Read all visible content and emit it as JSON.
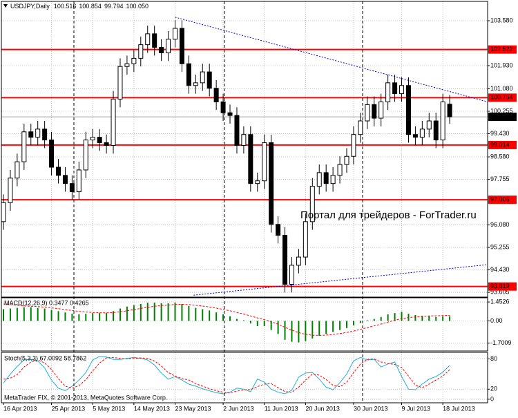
{
  "chart_data": [
    {
      "type": "candlestick",
      "title": "USDJPY,Daily",
      "title_values": [
        "100.516",
        "100.854",
        "99.794",
        "100.050"
      ],
      "watermark": "Портал для трейдеров - ForTrader.ru",
      "categories": [
        "16 Apr 2013",
        null,
        null,
        null,
        null,
        null,
        null,
        "25 Apr 2013",
        null,
        null,
        null,
        null,
        null,
        "5 May 2013",
        null,
        null,
        null,
        null,
        null,
        "14 May 2013",
        null,
        null,
        null,
        null,
        null,
        "23 May 2013",
        null,
        null,
        null,
        null,
        null,
        null,
        "2 Jun 2013",
        null,
        null,
        null,
        null,
        null,
        "11 Jun 2013",
        null,
        null,
        null,
        null,
        null,
        "20 Jun 2013",
        null,
        null,
        null,
        null,
        null,
        null,
        "30 Jun 2013",
        null,
        null,
        null,
        null,
        null,
        null,
        "9 Jul 2013",
        null,
        null,
        null,
        null,
        null,
        "18 Jul 2013",
        null
      ],
      "open": [
        96.2,
        96.9,
        97.8,
        98.4,
        99.5,
        99.3,
        99.6,
        99.2,
        98.2,
        97.9,
        97.6,
        97.3,
        98.1,
        99.2,
        99.3,
        99.1,
        99.0,
        100.7,
        101.9,
        102.0,
        102.2,
        102.7,
        103.1,
        102.6,
        102.4,
        102.9,
        103.3,
        102.0,
        101.2,
        101.3,
        101.7,
        101.1,
        100.6,
        100.2,
        100.1,
        99.0,
        99.4,
        97.6,
        97.7,
        99.1,
        96.1,
        95.7,
        93.9,
        94.6,
        94.9,
        96.2,
        97.5,
        98.0,
        97.6,
        97.9,
        98.3,
        98.6,
        99.4,
        99.9,
        100.5,
        100.0,
        100.6,
        101.3,
        100.9,
        101.2,
        99.4,
        99.3,
        99.6,
        99.9,
        99.2,
        100.516
      ],
      "high": [
        97.2,
        98.1,
        98.7,
        99.8,
        99.8,
        99.9,
        99.9,
        99.5,
        98.5,
        98.2,
        97.9,
        98.4,
        99.5,
        99.6,
        99.6,
        99.4,
        101.0,
        102.2,
        102.3,
        102.5,
        103.0,
        103.4,
        103.4,
        102.9,
        103.2,
        103.6,
        103.6,
        102.3,
        101.6,
        102.0,
        102.0,
        101.4,
        100.9,
        100.5,
        100.4,
        99.7,
        99.7,
        98.0,
        99.4,
        99.4,
        96.4,
        96.0,
        94.9,
        95.2,
        96.5,
        97.8,
        98.3,
        98.3,
        98.2,
        98.6,
        98.9,
        99.7,
        100.2,
        100.8,
        100.8,
        100.9,
        101.6,
        101.6,
        101.5,
        101.5,
        99.7,
        99.9,
        100.2,
        100.2,
        100.9,
        100.854
      ],
      "low": [
        95.9,
        96.6,
        97.5,
        98.1,
        99.0,
        99.0,
        98.9,
        97.9,
        97.6,
        97.3,
        97.0,
        97.0,
        97.8,
        98.9,
        98.8,
        98.7,
        98.7,
        100.4,
        101.6,
        101.7,
        101.9,
        102.4,
        102.3,
        102.1,
        102.1,
        102.6,
        101.7,
        100.9,
        100.9,
        101.0,
        100.8,
        100.3,
        99.9,
        99.8,
        98.7,
        98.7,
        97.3,
        97.3,
        97.4,
        95.8,
        95.4,
        93.6,
        93.6,
        94.3,
        94.6,
        95.9,
        97.2,
        97.3,
        97.3,
        97.6,
        98.0,
        98.3,
        99.1,
        99.6,
        99.7,
        99.7,
        100.3,
        100.6,
        100.6,
        99.1,
        99.0,
        99.0,
        99.3,
        98.9,
        98.9,
        99.794
      ],
      "close": [
        96.9,
        97.8,
        98.4,
        99.5,
        99.3,
        99.6,
        99.2,
        98.2,
        97.9,
        97.6,
        97.3,
        98.1,
        99.2,
        99.3,
        99.1,
        99.0,
        100.7,
        101.9,
        102.0,
        102.2,
        102.7,
        103.1,
        102.6,
        102.4,
        102.9,
        103.3,
        102.0,
        101.2,
        101.3,
        101.7,
        101.1,
        100.6,
        100.2,
        100.1,
        99.0,
        99.4,
        97.6,
        97.7,
        99.1,
        96.1,
        95.7,
        93.9,
        94.6,
        94.9,
        96.2,
        97.5,
        98.0,
        97.6,
        97.9,
        98.3,
        98.6,
        99.4,
        99.9,
        100.5,
        100.0,
        100.6,
        101.3,
        100.9,
        101.2,
        99.4,
        99.3,
        99.6,
        99.9,
        99.2,
        100.6,
        100.05
      ],
      "up_color": "#ffffff",
      "down_color": "#000000",
      "ylim": [
        93.43,
        104.29
      ],
      "yticks": [
        {
          "value": 103.58,
          "label": "103.580"
        },
        {
          "value": 101.93,
          "label": "101.930"
        },
        {
          "value": 101.08,
          "label": "101.080"
        },
        100.255,
        {
          "value": 99.43,
          "label": "99.430"
        },
        {
          "value": 98.58,
          "label": "98.580"
        },
        97.755,
        {
          "value": 96.08,
          "label": "96.080"
        },
        95.255,
        {
          "value": 94.43,
          "label": "94.430"
        },
        93.605
      ],
      "grid": true,
      "levels": [
        102.522,
        100.754,
        99.014,
        97.006,
        93.819
      ],
      "level_color": "#ff0000",
      "last_price": {
        "value": 100.05,
        "label": "100.050"
      },
      "trendlines": [
        {
          "color": "#0000cc",
          "x": [
            25,
            70.4
          ],
          "y": [
            103.71,
            100.61
          ]
        },
        {
          "color": "#0000cc",
          "x": [
            27.7,
            70.4
          ],
          "y": [
            93.5,
            94.62
          ]
        }
      ]
    },
    {
      "type": "macd",
      "title": "MACD(12,26,9) 0.3477 0.4265",
      "ylim": [
        -2.31,
        1.775
      ],
      "yticks": [
        1.4526,
        {
          "value": 0,
          "label": "0.00"
        },
        -1.7009
      ],
      "grid": true,
      "series": [
        {
          "color": "#008000",
          "style": "histogram",
          "values": [
            0.9,
            0.95,
            1.0,
            1.05,
            1.05,
            1.0,
            0.95,
            0.85,
            0.75,
            0.65,
            0.55,
            0.5,
            0.55,
            0.6,
            0.6,
            0.6,
            0.75,
            0.95,
            1.1,
            1.2,
            1.3,
            1.4,
            1.4,
            1.35,
            1.35,
            1.4,
            1.3,
            1.15,
            1.0,
            0.9,
            0.8,
            0.65,
            0.5,
            0.35,
            0.15,
            0.05,
            -0.2,
            -0.4,
            -0.4,
            -0.7,
            -1.0,
            -1.45,
            -1.6,
            -1.65,
            -1.55,
            -1.35,
            -1.15,
            -1.0,
            -0.85,
            -0.7,
            -0.55,
            -0.35,
            -0.15,
            0.05,
            0.15,
            0.3,
            0.5,
            0.6,
            0.7,
            0.55,
            0.45,
            0.4,
            0.4,
            0.3,
            0.35,
            0.3477
          ]
        },
        {
          "color": "#ff0000",
          "style": "dashed",
          "values": [
            1.3,
            1.25,
            1.2,
            1.15,
            1.12,
            1.1,
            1.06,
            1.0,
            0.94,
            0.87,
            0.8,
            0.73,
            0.68,
            0.65,
            0.63,
            0.62,
            0.64,
            0.7,
            0.78,
            0.87,
            0.96,
            1.05,
            1.13,
            1.18,
            1.22,
            1.26,
            1.27,
            1.25,
            1.2,
            1.14,
            1.07,
            0.98,
            0.89,
            0.78,
            0.65,
            0.53,
            0.38,
            0.23,
            0.1,
            -0.06,
            -0.25,
            -0.49,
            -0.71,
            -0.9,
            -1.03,
            -1.1,
            -1.11,
            -1.09,
            -1.04,
            -0.97,
            -0.89,
            -0.78,
            -0.65,
            -0.51,
            -0.38,
            -0.24,
            -0.09,
            0.05,
            0.18,
            0.26,
            0.3,
            0.34,
            0.38,
            0.39,
            0.41,
            0.4265
          ]
        }
      ]
    },
    {
      "type": "stoch",
      "title": "Stoch(5,3,3) 67.0092 58.7862",
      "copyright": "MetaTrader FIX, © 2001-2013, MetaQuotes Software Corp.",
      "ylim": [
        -7,
        93
      ],
      "yticks": [
        80,
        20,
        0
      ],
      "grid": true,
      "series": [
        {
          "color": "#1fb0d8",
          "style": "solid",
          "values": [
            32,
            50,
            65,
            78,
            79,
            76,
            62,
            38,
            22,
            17,
            26,
            38,
            53,
            78,
            85,
            84,
            79,
            79,
            81,
            83,
            81,
            78,
            68,
            52,
            40,
            45,
            38,
            30,
            26,
            21,
            17,
            13,
            11,
            14,
            22,
            20,
            15,
            40,
            34,
            20,
            14,
            11,
            18,
            44,
            52,
            53,
            40,
            24,
            19,
            33,
            50,
            76,
            83,
            78,
            79,
            64,
            70,
            74,
            45,
            20,
            19,
            30,
            40,
            45,
            54,
            67.0092
          ]
        },
        {
          "color": "#ff0000",
          "style": "dashed",
          "values": [
            40,
            42,
            49,
            64,
            74,
            78,
            72,
            59,
            41,
            26,
            22,
            27,
            39,
            56,
            72,
            82,
            83,
            81,
            80,
            81,
            82,
            81,
            76,
            66,
            53,
            46,
            41,
            38,
            31,
            26,
            21,
            17,
            14,
            13,
            16,
            19,
            19,
            25,
            30,
            31,
            23,
            15,
            14,
            24,
            38,
            50,
            48,
            39,
            28,
            25,
            34,
            53,
            70,
            79,
            80,
            74,
            71,
            69,
            63,
            46,
            28,
            23,
            30,
            38,
            46,
            58.7862
          ]
        }
      ]
    }
  ]
}
